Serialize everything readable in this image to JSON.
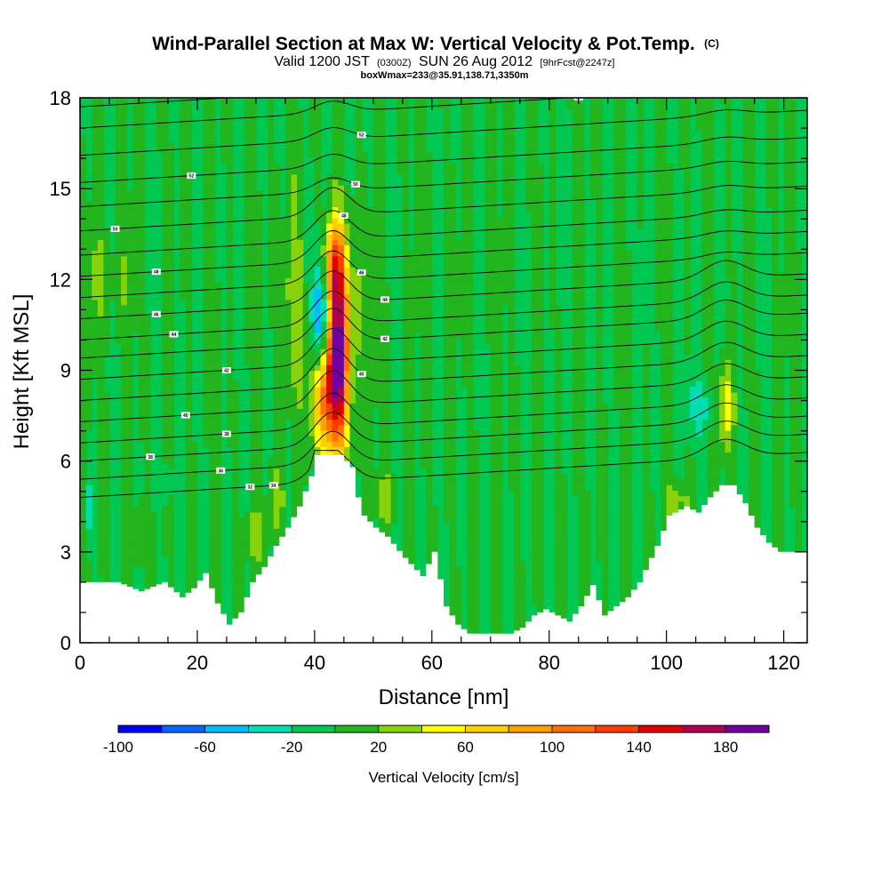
{
  "title": {
    "main": "Wind-Parallel Section at Max W: Vertical Velocity & Pot.Temp.",
    "copyright": "(C)",
    "line2_a": "Valid 1200 JST",
    "line2_b": "(0300Z)",
    "line2_c": "SUN 26 Aug 2012",
    "line2_d": "[9hrFcst@2247z]",
    "line3": "boxWmax=233@35.91,138.71,3350m"
  },
  "chart_data": {
    "type": "heatmap",
    "xlabel": "Distance [nm]",
    "ylabel": "Height [Kft MSL]",
    "xlim": [
      0,
      124
    ],
    "ylim": [
      0,
      18
    ],
    "x_ticks": [
      0,
      20,
      40,
      60,
      80,
      100,
      120
    ],
    "y_ticks": [
      0,
      3,
      6,
      9,
      12,
      15,
      18
    ],
    "background_value_cm_s": 0,
    "terrain": {
      "x": [
        0,
        6,
        10,
        14,
        17,
        19,
        21,
        23,
        25,
        27,
        29,
        31,
        33,
        35,
        37,
        38,
        39,
        40,
        42,
        44,
        46,
        47,
        48,
        50,
        52,
        55,
        58,
        60,
        62,
        64,
        66,
        68,
        70,
        73,
        75,
        77,
        79,
        81,
        83,
        85,
        87,
        89,
        91,
        93,
        95,
        98,
        100,
        103,
        105,
        107,
        109,
        111,
        113,
        115,
        117,
        119,
        121,
        124
      ],
      "height_kft": [
        2.0,
        2.0,
        1.7,
        2.0,
        1.5,
        1.8,
        2.3,
        1.3,
        0.6,
        1.0,
        2.0,
        2.5,
        3.2,
        3.8,
        4.5,
        5.0,
        5.5,
        6.2,
        6.2,
        6.2,
        5.8,
        4.8,
        4.2,
        3.8,
        3.5,
        2.8,
        2.2,
        3.0,
        1.2,
        0.6,
        0.3,
        0.3,
        0.3,
        0.3,
        0.5,
        0.9,
        1.1,
        0.9,
        0.7,
        1.2,
        1.9,
        0.9,
        1.2,
        1.5,
        2.0,
        3.2,
        4.2,
        4.5,
        4.3,
        4.8,
        5.2,
        5.2,
        4.6,
        3.8,
        3.3,
        3.0,
        3.0,
        3.0
      ]
    },
    "updraft_cores": [
      {
        "x_nm": 41,
        "z_kft": 10.5,
        "w_cm_s": -90,
        "sigma_x_nm": 1.0,
        "sigma_z_kft": 1.6
      },
      {
        "x_nm": 44,
        "z_kft": 9.5,
        "w_cm_s": 170,
        "sigma_x_nm": 1.3,
        "sigma_z_kft": 2.2
      },
      {
        "x_nm": 41.5,
        "z_kft": 8.3,
        "w_cm_s": 110,
        "sigma_x_nm": 1.6,
        "sigma_z_kft": 1.4
      },
      {
        "x_nm": 43,
        "z_kft": 12.5,
        "w_cm_s": 80,
        "sigma_x_nm": 1.4,
        "sigma_z_kft": 1.0
      },
      {
        "x_nm": 110,
        "z_kft": 7.8,
        "w_cm_s": 65,
        "sigma_x_nm": 0.9,
        "sigma_z_kft": 1.1
      },
      {
        "x_nm": 105.5,
        "z_kft": 7.8,
        "w_cm_s": -30,
        "sigma_x_nm": 2.0,
        "sigma_z_kft": 0.8
      },
      {
        "x_nm": 1.5,
        "z_kft": 4.5,
        "w_cm_s": -30,
        "sigma_x_nm": 0.6,
        "sigma_z_kft": 0.8
      },
      {
        "x_nm": 15,
        "z_kft": 5.3,
        "w_cm_s": -25,
        "sigma_x_nm": 0.8,
        "sigma_z_kft": 0.4
      },
      {
        "x_nm": 10,
        "z_kft": 3.5,
        "w_cm_s": 25,
        "sigma_x_nm": 1.0,
        "sigma_z_kft": 0.6
      },
      {
        "x_nm": 30,
        "z_kft": 3.5,
        "w_cm_s": 28,
        "sigma_x_nm": 1.2,
        "sigma_z_kft": 0.7
      },
      {
        "x_nm": 33.5,
        "z_kft": 4.8,
        "w_cm_s": 30,
        "sigma_x_nm": 1.0,
        "sigma_z_kft": 0.8
      },
      {
        "x_nm": 52,
        "z_kft": 4.8,
        "w_cm_s": 30,
        "sigma_x_nm": 1.2,
        "sigma_z_kft": 0.6
      },
      {
        "x_nm": 102,
        "z_kft": 4.7,
        "w_cm_s": 30,
        "sigma_x_nm": 1.5,
        "sigma_z_kft": 0.5
      },
      {
        "x_nm": 36,
        "z_kft": 11.5,
        "w_cm_s": 22,
        "sigma_x_nm": 2.0,
        "sigma_z_kft": 2.5
      },
      {
        "x_nm": 47,
        "z_kft": 11.0,
        "w_cm_s": 22,
        "sigma_x_nm": 2.0,
        "sigma_z_kft": 2.5
      },
      {
        "x_nm": 4,
        "z_kft": 12.0,
        "w_cm_s": 22,
        "sigma_x_nm": 3.0,
        "sigma_z_kft": 1.2
      }
    ],
    "theta_contours": {
      "levels_note": "potential temperature isentropes (unitless labels)",
      "y_left_kft": [
        4.8,
        5.4,
        6.0,
        6.6,
        7.3,
        8.0,
        8.7,
        9.4,
        10.0,
        10.7,
        11.4,
        12.1,
        12.8,
        13.6,
        14.4,
        15.2,
        16.1,
        17.0,
        17.7
      ],
      "labels": [
        {
          "x": 29,
          "level": "32"
        },
        {
          "x": 33,
          "level": "34"
        },
        {
          "x": 24,
          "level": "36"
        },
        {
          "x": 12,
          "level": "38"
        },
        {
          "x": 25,
          "level": "38"
        },
        {
          "x": 18,
          "level": "40"
        },
        {
          "x": 48,
          "level": "40"
        },
        {
          "x": 25,
          "level": "42"
        },
        {
          "x": 52,
          "level": "42"
        },
        {
          "x": 16,
          "level": "44"
        },
        {
          "x": 52,
          "level": "44"
        },
        {
          "x": 13,
          "level": "46"
        },
        {
          "x": 48,
          "level": "46"
        },
        {
          "x": 13,
          "level": "48"
        },
        {
          "x": 45,
          "level": "48"
        },
        {
          "x": 6,
          "level": "50"
        },
        {
          "x": 47,
          "level": "50"
        },
        {
          "x": 19,
          "level": "52"
        },
        {
          "x": 48,
          "level": "52"
        },
        {
          "x": 85,
          "level": "54"
        },
        {
          "x": 95,
          "level": "56"
        }
      ]
    },
    "colorbar": {
      "title": "Vertical Velocity [cm/s]",
      "min": -100,
      "max": 200,
      "step": 20,
      "tick_labels": [
        "-100",
        "-60",
        "-20",
        "20",
        "60",
        "100",
        "140",
        "180"
      ],
      "colors": [
        "#0000ff",
        "#0066ff",
        "#00bbff",
        "#00ddb3",
        "#00c853",
        "#22b51e",
        "#88d20c",
        "#ffff00",
        "#ffd000",
        "#ffa000",
        "#ff7000",
        "#ff3c00",
        "#e00000",
        "#b00050",
        "#7000a0"
      ]
    }
  }
}
